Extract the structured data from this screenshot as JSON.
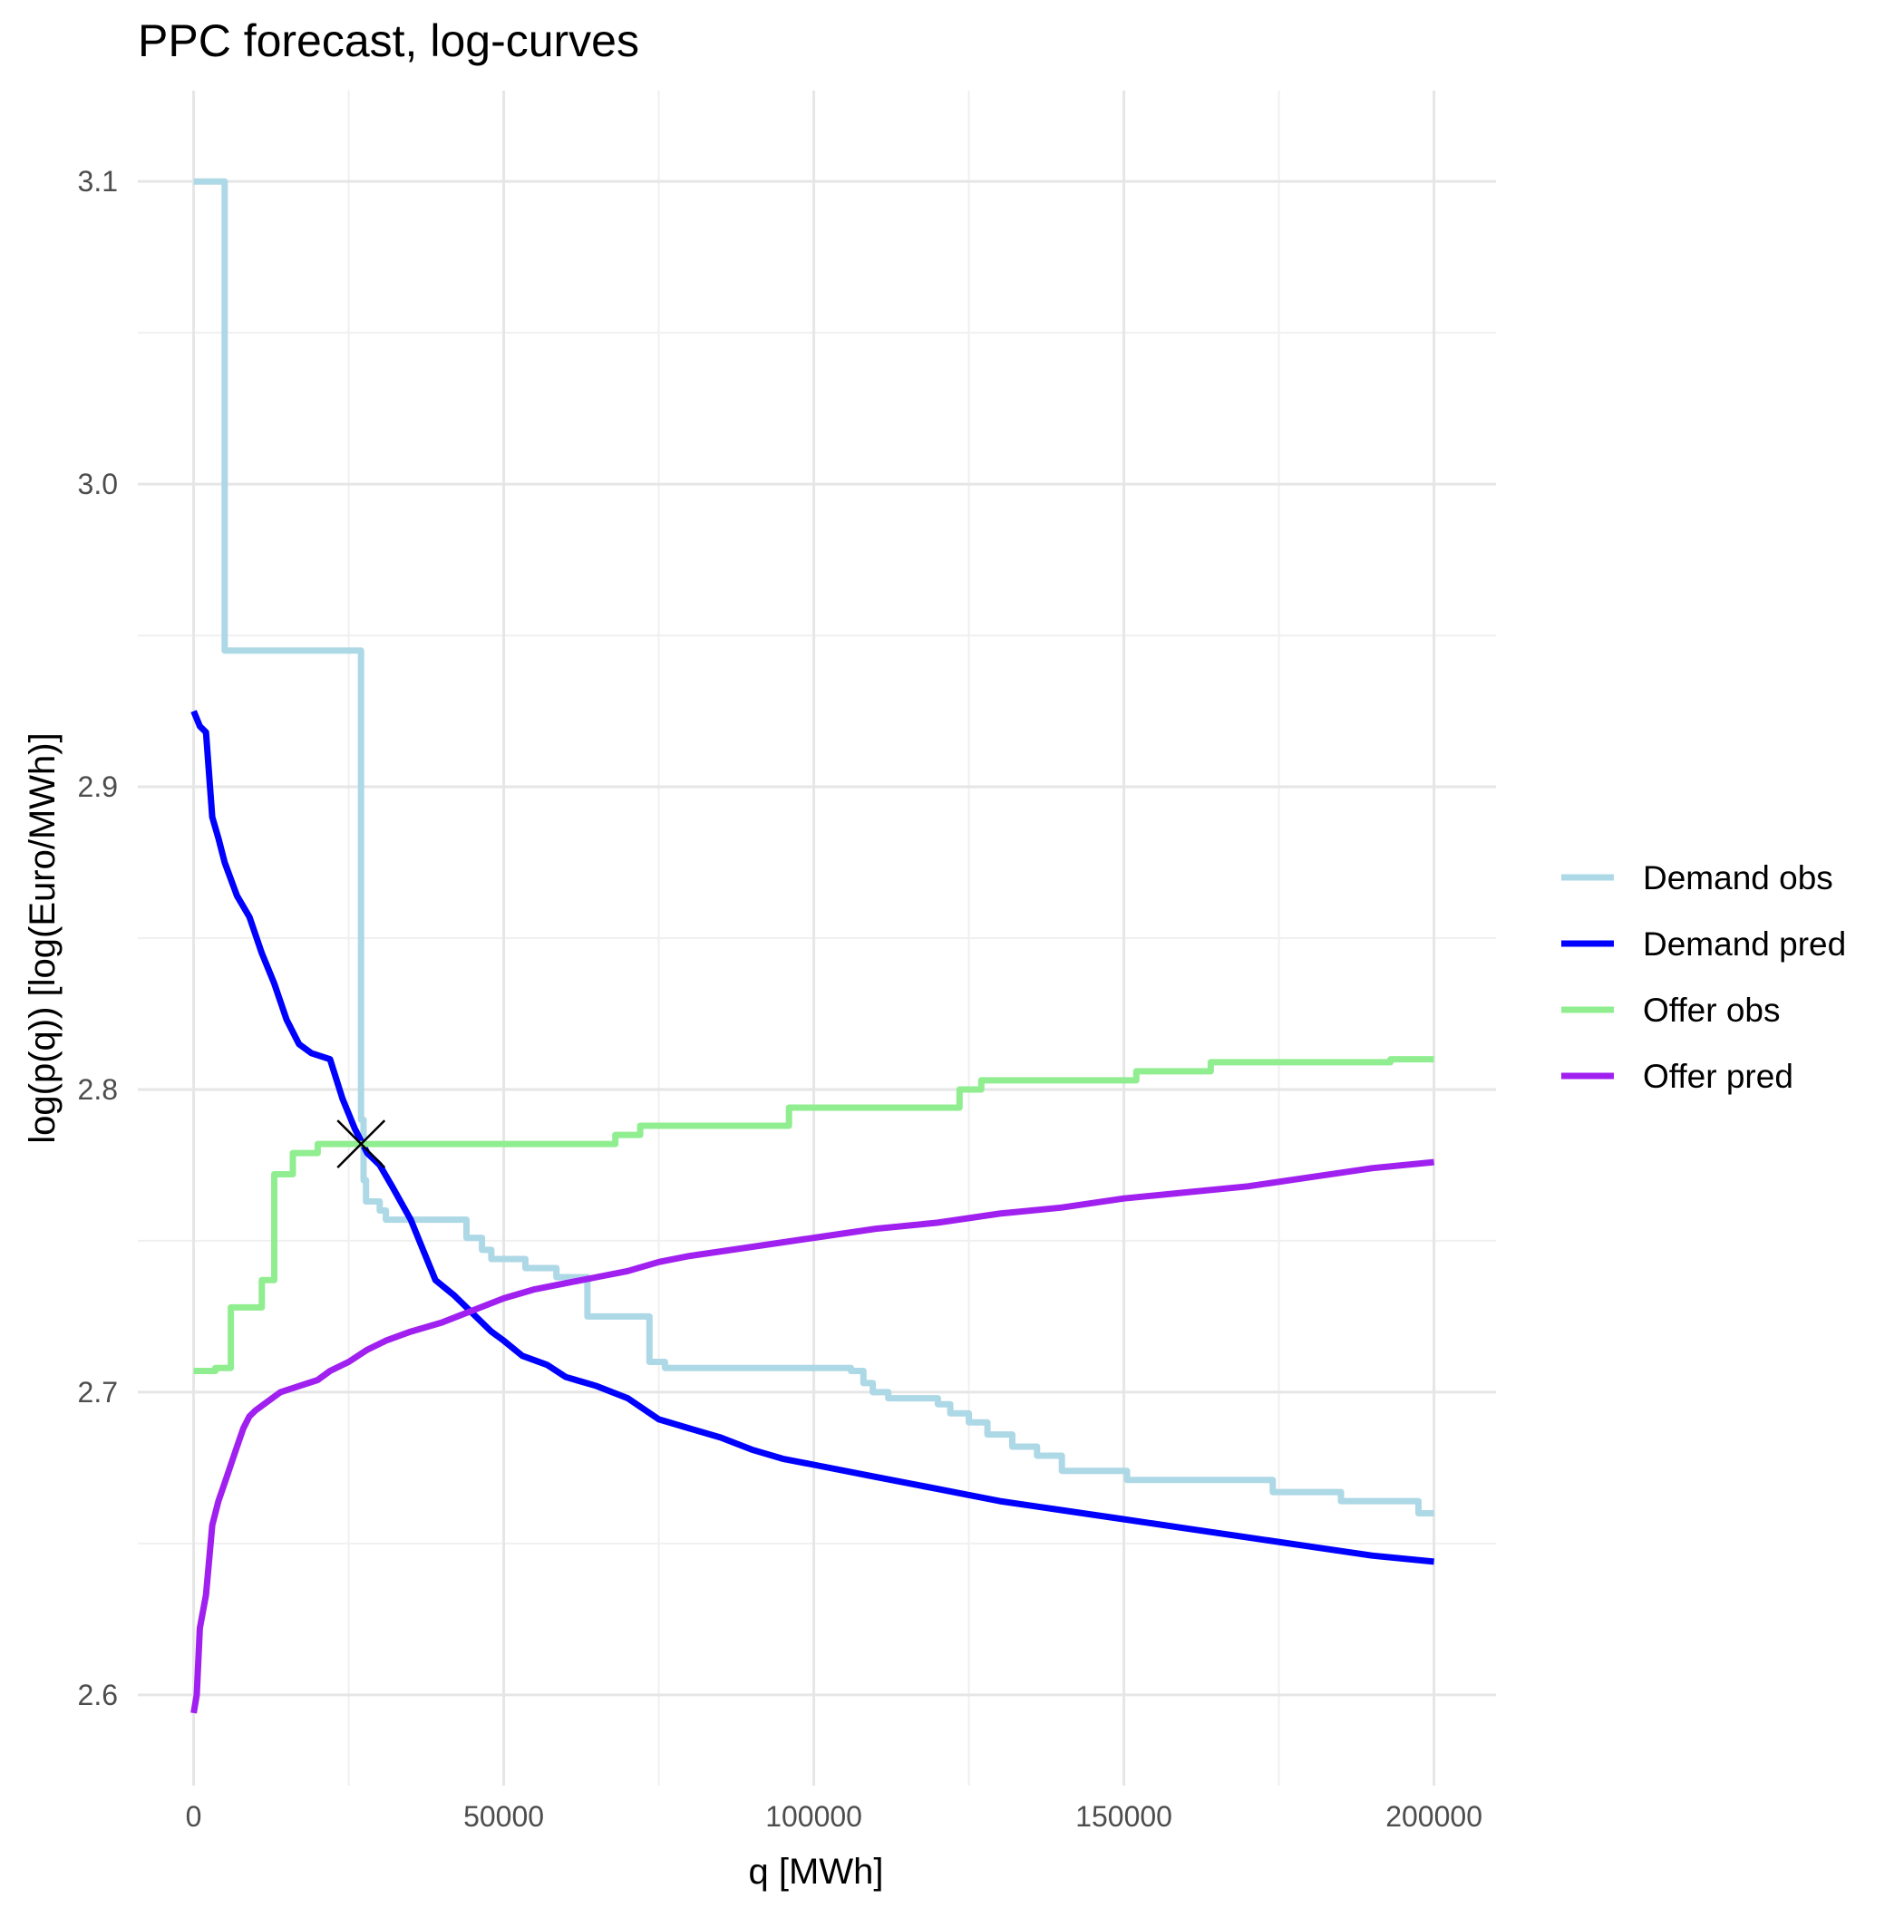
{
  "chart_data": {
    "type": "line",
    "title": "PPC forecast, log-curves",
    "xlabel": "q [MWh]",
    "ylabel": "log(p(q)) [log(Euro/MWh)]",
    "xlim": [
      -9000,
      210000
    ],
    "ylim": [
      2.57,
      3.13
    ],
    "x_ticks": [
      0,
      50000,
      100000,
      150000,
      200000
    ],
    "x_tick_labels": [
      "0",
      "50000",
      "100000",
      "150000",
      "200000"
    ],
    "y_ticks": [
      2.6,
      2.7,
      2.8,
      2.9,
      3.0,
      3.1
    ],
    "y_tick_labels": [
      "2.6",
      "2.7",
      "2.8",
      "2.9",
      "3.0",
      "3.1"
    ],
    "grid": true,
    "legend_position": "right",
    "series": [
      {
        "name": "Demand obs",
        "color": "#ADD8E6",
        "step": true,
        "points": [
          [
            0,
            3.1
          ],
          [
            4500,
            3.1
          ],
          [
            5000,
            2.945
          ],
          [
            26600,
            2.945
          ],
          [
            27000,
            2.79
          ],
          [
            27400,
            2.77
          ],
          [
            27800,
            2.763
          ],
          [
            30000,
            2.76
          ],
          [
            31000,
            2.757
          ],
          [
            44000,
            2.751
          ],
          [
            46500,
            2.747
          ],
          [
            48000,
            2.744
          ],
          [
            53500,
            2.741
          ],
          [
            58500,
            2.738
          ],
          [
            63500,
            2.725
          ],
          [
            73500,
            2.71
          ],
          [
            76000,
            2.708
          ],
          [
            106000,
            2.707
          ],
          [
            108000,
            2.703
          ],
          [
            109500,
            2.7
          ],
          [
            112000,
            2.698
          ],
          [
            120000,
            2.696
          ],
          [
            122000,
            2.693
          ],
          [
            125000,
            2.69
          ],
          [
            128000,
            2.686
          ],
          [
            132000,
            2.682
          ],
          [
            136000,
            2.679
          ],
          [
            140000,
            2.674
          ],
          [
            150500,
            2.671
          ],
          [
            174000,
            2.667
          ],
          [
            185000,
            2.664
          ],
          [
            197500,
            2.66
          ],
          [
            200000,
            2.66
          ]
        ]
      },
      {
        "name": "Demand pred",
        "color": "#0000FF",
        "step": false,
        "points": [
          [
            0,
            2.925
          ],
          [
            1000,
            2.92
          ],
          [
            2000,
            2.918
          ],
          [
            3000,
            2.89
          ],
          [
            4000,
            2.883
          ],
          [
            5000,
            2.875
          ],
          [
            7000,
            2.864
          ],
          [
            9000,
            2.857
          ],
          [
            11000,
            2.845
          ],
          [
            13000,
            2.835
          ],
          [
            15000,
            2.823
          ],
          [
            17000,
            2.815
          ],
          [
            19000,
            2.812
          ],
          [
            22000,
            2.81
          ],
          [
            24000,
            2.797
          ],
          [
            26000,
            2.787
          ],
          [
            28000,
            2.779
          ],
          [
            30000,
            2.775
          ],
          [
            32000,
            2.768
          ],
          [
            35000,
            2.757
          ],
          [
            37000,
            2.747
          ],
          [
            39000,
            2.737
          ],
          [
            42000,
            2.732
          ],
          [
            45000,
            2.726
          ],
          [
            48000,
            2.72
          ],
          [
            50000,
            2.717
          ],
          [
            53000,
            2.712
          ],
          [
            57000,
            2.709
          ],
          [
            60000,
            2.705
          ],
          [
            65000,
            2.702
          ],
          [
            70000,
            2.698
          ],
          [
            75000,
            2.691
          ],
          [
            80000,
            2.688
          ],
          [
            85000,
            2.685
          ],
          [
            90000,
            2.681
          ],
          [
            95000,
            2.678
          ],
          [
            100000,
            2.676
          ],
          [
            110000,
            2.672
          ],
          [
            120000,
            2.668
          ],
          [
            130000,
            2.664
          ],
          [
            140000,
            2.661
          ],
          [
            150000,
            2.658
          ],
          [
            160000,
            2.655
          ],
          [
            170000,
            2.652
          ],
          [
            180000,
            2.649
          ],
          [
            190000,
            2.646
          ],
          [
            200000,
            2.644
          ]
        ]
      },
      {
        "name": "Offer obs",
        "color": "#90EE90",
        "step": true,
        "points": [
          [
            0,
            2.707
          ],
          [
            3500,
            2.708
          ],
          [
            6000,
            2.728
          ],
          [
            11000,
            2.737
          ],
          [
            13000,
            2.772
          ],
          [
            16000,
            2.779
          ],
          [
            20000,
            2.782
          ],
          [
            68000,
            2.785
          ],
          [
            72000,
            2.788
          ],
          [
            96000,
            2.794
          ],
          [
            123500,
            2.8
          ],
          [
            127000,
            2.803
          ],
          [
            152000,
            2.806
          ],
          [
            164000,
            2.809
          ],
          [
            193000,
            2.81
          ],
          [
            200000,
            2.81
          ]
        ]
      },
      {
        "name": "Offer pred",
        "color": "#A020F0",
        "step": false,
        "points": [
          [
            0,
            2.594
          ],
          [
            500,
            2.6
          ],
          [
            1000,
            2.622
          ],
          [
            2000,
            2.633
          ],
          [
            3000,
            2.656
          ],
          [
            4000,
            2.664
          ],
          [
            5000,
            2.67
          ],
          [
            6000,
            2.676
          ],
          [
            7000,
            2.682
          ],
          [
            8000,
            2.688
          ],
          [
            9000,
            2.692
          ],
          [
            10000,
            2.694
          ],
          [
            12000,
            2.697
          ],
          [
            14000,
            2.7
          ],
          [
            17000,
            2.702
          ],
          [
            20000,
            2.704
          ],
          [
            22000,
            2.707
          ],
          [
            25000,
            2.71
          ],
          [
            28000,
            2.714
          ],
          [
            31000,
            2.717
          ],
          [
            35000,
            2.72
          ],
          [
            40000,
            2.723
          ],
          [
            45000,
            2.727
          ],
          [
            50000,
            2.731
          ],
          [
            55000,
            2.734
          ],
          [
            60000,
            2.736
          ],
          [
            65000,
            2.738
          ],
          [
            70000,
            2.74
          ],
          [
            75000,
            2.743
          ],
          [
            80000,
            2.745
          ],
          [
            90000,
            2.748
          ],
          [
            100000,
            2.751
          ],
          [
            110000,
            2.754
          ],
          [
            120000,
            2.756
          ],
          [
            130000,
            2.759
          ],
          [
            140000,
            2.761
          ],
          [
            150000,
            2.764
          ],
          [
            160000,
            2.766
          ],
          [
            170000,
            2.768
          ],
          [
            180000,
            2.771
          ],
          [
            190000,
            2.774
          ],
          [
            200000,
            2.776
          ]
        ]
      }
    ],
    "markers": [
      {
        "shape": "x",
        "color": "#000000",
        "x": 27000,
        "y": 2.782
      }
    ]
  }
}
